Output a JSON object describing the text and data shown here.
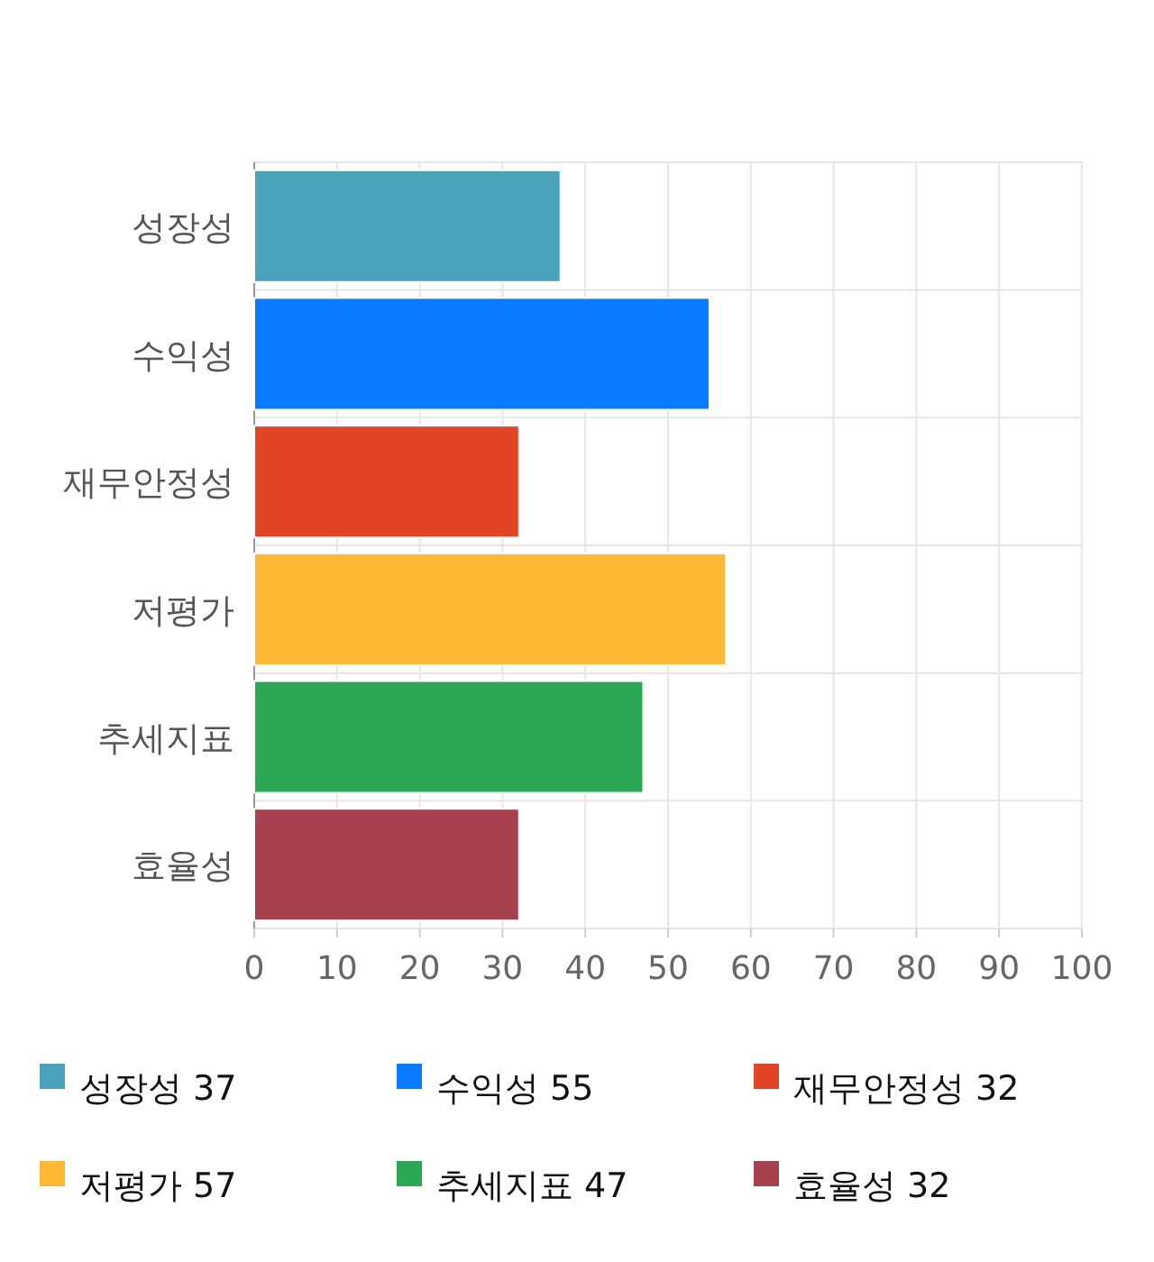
{
  "chart_data": {
    "type": "bar",
    "orientation": "horizontal",
    "categories": [
      "성장성",
      "수익성",
      "재무안정성",
      "저평가",
      "추세지표",
      "효율성"
    ],
    "series": [
      {
        "name": "성장성 37",
        "color": "#4aa3ba",
        "values": [
          37,
          null,
          null,
          null,
          null,
          null
        ]
      },
      {
        "name": "수익성 55",
        "color": "#0a7bff",
        "values": [
          null,
          55,
          null,
          null,
          null,
          null
        ]
      },
      {
        "name": "재무안정성 32",
        "color": "#e24426",
        "values": [
          null,
          null,
          32,
          null,
          null,
          null
        ]
      },
      {
        "name": "저평가 57",
        "color": "#ffb833",
        "values": [
          null,
          null,
          null,
          57,
          null,
          null
        ]
      },
      {
        "name": "추세지표 47",
        "color": "#2aa854",
        "values": [
          null,
          null,
          null,
          null,
          47,
          null
        ]
      },
      {
        "name": "효율성 32",
        "color": "#a8414f",
        "values": [
          null,
          null,
          null,
          null,
          null,
          32
        ]
      }
    ],
    "xlim": [
      0,
      100
    ],
    "xticks": [
      0,
      10,
      20,
      30,
      40,
      50,
      60,
      70,
      80,
      90,
      100
    ],
    "grid": true,
    "legend": "bottom"
  }
}
